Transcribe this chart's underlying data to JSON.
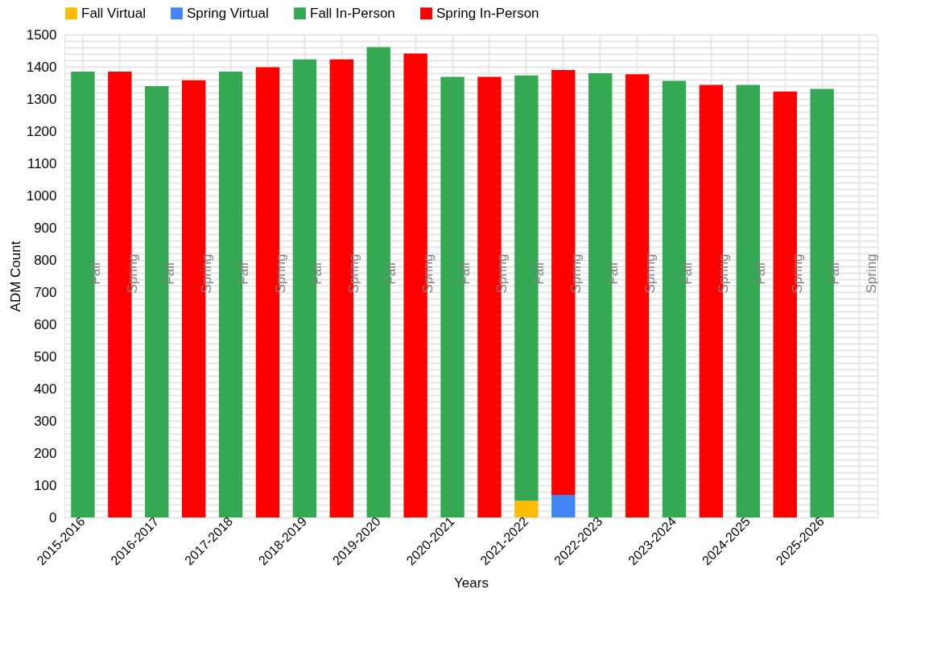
{
  "chart_data": {
    "type": "bar",
    "stacked": true,
    "xlabel": "Years",
    "ylabel": "ADM Count",
    "categories": [
      "2015-2016",
      null,
      "2016-2017",
      null,
      "2017-2018",
      null,
      "2018-2019",
      null,
      "2019-2020",
      null,
      "2020-2021",
      null,
      "2021-2022",
      null,
      "2022-2023",
      null,
      "2023-2024",
      null,
      "2024-2025",
      null,
      "2025-2026",
      null
    ],
    "series": [
      {
        "name": "Fall Virtual",
        "color": "#fbbc04",
        "values": [
          null,
          null,
          null,
          null,
          null,
          null,
          null,
          null,
          null,
          null,
          null,
          null,
          52,
          null,
          null,
          null,
          null,
          null,
          null,
          null,
          null,
          null
        ]
      },
      {
        "name": "Spring Virtual",
        "color": "#4285f4",
        "values": [
          null,
          null,
          null,
          null,
          null,
          null,
          null,
          null,
          null,
          null,
          null,
          null,
          null,
          70,
          null,
          null,
          null,
          null,
          null,
          null,
          null,
          null
        ]
      },
      {
        "name": "Fall In-Person",
        "color": "#34a853",
        "values": [
          1385,
          null,
          1340,
          null,
          1385,
          null,
          1423,
          null,
          1461,
          null,
          1369,
          null,
          1321,
          null,
          1380,
          null,
          1356,
          null,
          1344,
          null,
          1331,
          null
        ]
      },
      {
        "name": "Spring In-Person",
        "color": "#ff0000",
        "values": [
          null,
          1385,
          null,
          1358,
          null,
          1399,
          null,
          1423,
          null,
          1441,
          null,
          1369,
          null,
          1320,
          null,
          1377,
          null,
          1344,
          null,
          1323,
          null,
          null
        ]
      }
    ],
    "annotations": [
      "Fall",
      "Spring",
      "Fall",
      "Spring",
      "Fall",
      "Spring",
      "Fall",
      "Spring",
      "Fall",
      "Spring",
      "Fall",
      "Spring",
      "Fall",
      "Spring",
      "Fall",
      "Spring",
      "Fall",
      "Spring",
      "Fall",
      "Spring",
      "Fall",
      "Spring"
    ],
    "ylim": [
      0,
      1500
    ],
    "yticks": [
      0,
      {
        "value": 20,
        "label": null
      },
      {
        "value": 40,
        "label": null
      },
      {
        "value": 60,
        "label": null
      },
      {
        "value": 80,
        "label": null
      },
      100,
      {
        "value": 120,
        "label": null
      },
      {
        "value": 140,
        "label": null
      },
      {
        "value": 160,
        "label": null
      },
      {
        "value": 180,
        "label": null
      },
      200,
      {
        "value": 220,
        "label": null
      },
      {
        "value": 240,
        "label": null
      },
      {
        "value": 260,
        "label": null
      },
      {
        "value": 280,
        "label": null
      },
      300,
      {
        "value": 320,
        "label": null
      },
      {
        "value": 340,
        "label": null
      },
      {
        "value": 360,
        "label": null
      },
      {
        "value": 380,
        "label": null
      },
      400,
      {
        "value": 420,
        "label": null
      },
      {
        "value": 440,
        "label": null
      },
      {
        "value": 460,
        "label": null
      },
      {
        "value": 480,
        "label": null
      },
      500,
      {
        "value": 520,
        "label": null
      },
      {
        "value": 540,
        "label": null
      },
      {
        "value": 560,
        "label": null
      },
      {
        "value": 580,
        "label": null
      },
      600,
      {
        "value": 620,
        "label": null
      },
      {
        "value": 640,
        "label": null
      },
      {
        "value": 660,
        "label": null
      },
      {
        "value": 680,
        "label": null
      },
      700,
      {
        "value": 720,
        "label": null
      },
      {
        "value": 740,
        "label": null
      },
      {
        "value": 760,
        "label": null
      },
      {
        "value": 780,
        "label": null
      },
      800,
      {
        "value": 820,
        "label": null
      },
      {
        "value": 840,
        "label": null
      },
      {
        "value": 860,
        "label": null
      },
      {
        "value": 880,
        "label": null
      },
      900,
      {
        "value": 920,
        "label": null
      },
      {
        "value": 940,
        "label": null
      },
      {
        "value": 960,
        "label": null
      },
      {
        "value": 980,
        "label": null
      },
      1000,
      {
        "value": 1020,
        "label": null
      },
      {
        "value": 1040,
        "label": null
      },
      {
        "value": 1060,
        "label": null
      },
      {
        "value": 1080,
        "label": null
      },
      1100,
      {
        "value": 1120,
        "label": null
      },
      {
        "value": 1140,
        "label": null
      },
      {
        "value": 1160,
        "label": null
      },
      {
        "value": 1180,
        "label": null
      },
      1200,
      {
        "value": 1220,
        "label": null
      },
      {
        "value": 1240,
        "label": null
      },
      {
        "value": 1260,
        "label": null
      },
      {
        "value": 1280,
        "label": null
      },
      1300,
      {
        "value": 1320,
        "label": null
      },
      {
        "value": 1340,
        "label": null
      },
      {
        "value": 1360,
        "label": null
      },
      {
        "value": 1380,
        "label": null
      },
      1400,
      {
        "value": 1420,
        "label": null
      },
      {
        "value": 1440,
        "label": null
      },
      {
        "value": 1460,
        "label": null
      },
      {
        "value": 1480,
        "label": null
      },
      1500
    ],
    "grid": true,
    "legend": "top"
  }
}
